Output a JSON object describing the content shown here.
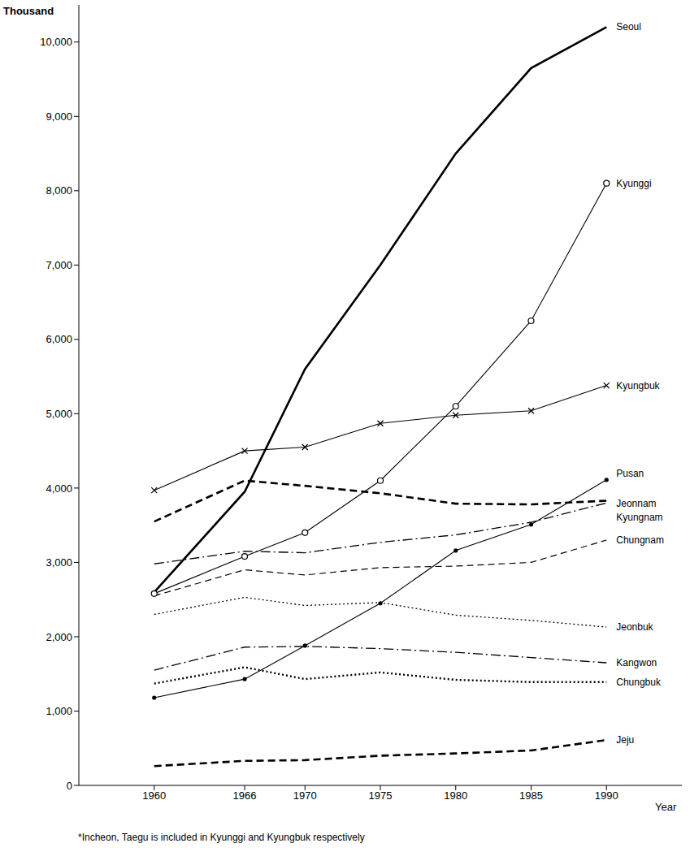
{
  "chart_data": {
    "type": "line",
    "ylabel": "Thousand",
    "xlabel": "Year",
    "footnote": "*Incheon, Taegu is included in Kyunggi and Kyungbuk respectively",
    "x": [
      1960,
      1966,
      1970,
      1975,
      1980,
      1985,
      1990
    ],
    "xlim": [
      1955,
      1995
    ],
    "xticks": [
      1960,
      1966,
      1970,
      1975,
      1980,
      1985,
      1990
    ],
    "ylim": [
      0,
      10500
    ],
    "yticks": [
      0,
      {
        "value": 1000,
        "label": "1,000"
      },
      {
        "value": 2000,
        "label": "2,000"
      },
      {
        "value": 3000,
        "label": "3,000"
      },
      {
        "value": 4000,
        "label": "4,000"
      },
      {
        "value": 5000,
        "label": "5,000"
      },
      {
        "value": 6000,
        "label": "6,000"
      },
      {
        "value": 7000,
        "label": "7,000"
      },
      {
        "value": 8000,
        "label": "8,000"
      },
      {
        "value": 9000,
        "label": "9,000"
      },
      {
        "value": 10000,
        "label": "10,000"
      }
    ],
    "grid": false,
    "series": [
      {
        "name": "Seoul",
        "color": "#000000",
        "line_style": "thick",
        "marker": "none",
        "values": [
          2600,
          3950,
          5600,
          7000,
          8500,
          9650,
          10200
        ]
      },
      {
        "name": "Kyunggi",
        "color": "#000000",
        "line_style": "solid",
        "marker": "circle",
        "values": [
          2580,
          3080,
          3400,
          4100,
          5100,
          6250,
          8100
        ]
      },
      {
        "name": "Kyungbuk",
        "color": "#000000",
        "line_style": "solid",
        "marker": "x",
        "values": [
          3970,
          4500,
          4550,
          4870,
          4980,
          5040,
          5380
        ]
      },
      {
        "name": "Pusan",
        "color": "#000000",
        "line_style": "solid",
        "marker": "dot",
        "values": [
          1180,
          1430,
          1880,
          2450,
          3160,
          3510,
          4110
        ]
      },
      {
        "name": "Jeonnam",
        "color": "#000000",
        "line_style": "thickdashed",
        "marker": "none",
        "values": [
          3550,
          4100,
          4030,
          3930,
          3790,
          3780,
          3830
        ]
      },
      {
        "name": "Kyungnam",
        "color": "#000000",
        "line_style": "dashdot",
        "marker": "none",
        "values": [
          2980,
          3150,
          3130,
          3270,
          3370,
          3540,
          3800
        ]
      },
      {
        "name": "Chungnam",
        "color": "#000000",
        "line_style": "dashed",
        "marker": "none",
        "values": [
          2550,
          2900,
          2830,
          2930,
          2950,
          3000,
          3300
        ]
      },
      {
        "name": "Jeonbuk",
        "color": "#000000",
        "line_style": "dotted",
        "marker": "none",
        "values": [
          2300,
          2530,
          2420,
          2460,
          2290,
          2220,
          2130
        ]
      },
      {
        "name": "Kangwon",
        "color": "#000000",
        "line_style": "dashdot",
        "marker": "none",
        "values": [
          1550,
          1860,
          1870,
          1840,
          1790,
          1720,
          1650
        ]
      },
      {
        "name": "Chungbuk",
        "color": "#000000",
        "line_style": "thickdotted",
        "marker": "none",
        "values": [
          1370,
          1590,
          1430,
          1520,
          1420,
          1390,
          1390
        ]
      },
      {
        "name": "Jeju",
        "color": "#000000",
        "line_style": "thickdashed",
        "marker": "none",
        "values": [
          260,
          330,
          340,
          400,
          430,
          470,
          610
        ]
      }
    ]
  }
}
